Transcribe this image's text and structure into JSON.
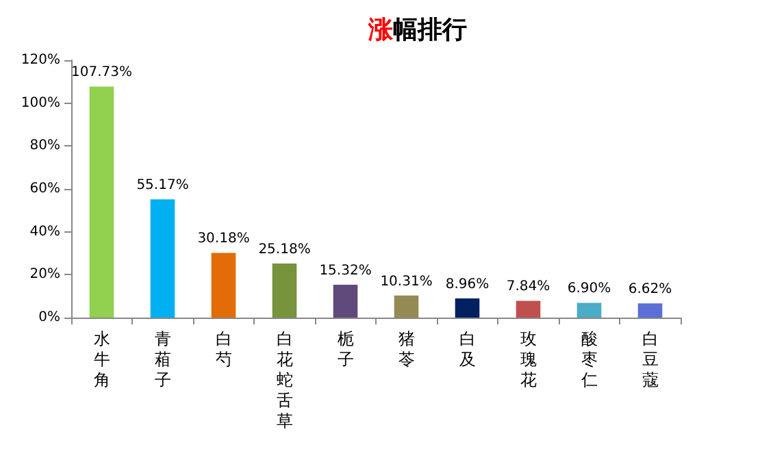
{
  "chart_data": {
    "type": "bar",
    "title": "涨幅排行",
    "categories": [
      "水牛角",
      "青葙子",
      "白芍",
      "白花蛇舌草",
      "栀子",
      "猪苓",
      "白及",
      "玫瑰花",
      "酸枣仁",
      "白豆蔻"
    ],
    "values": [
      107.73,
      55.17,
      30.18,
      25.18,
      15.32,
      10.31,
      8.96,
      7.84,
      6.9,
      6.62
    ],
    "value_labels": [
      "107.73%",
      "55.17%",
      "30.18%",
      "25.18%",
      "15.32%",
      "10.31%",
      "8.96%",
      "7.84%",
      "6.90%",
      "6.62%"
    ],
    "colors": [
      "#92d050",
      "#00b0f0",
      "#e36c09",
      "#77933c",
      "#604a7b",
      "#948a54",
      "#002060",
      "#c0504d",
      "#4bacc6",
      "#5b6fd6"
    ],
    "ylim": [
      0,
      120
    ],
    "yticks": [
      {
        "value": 0,
        "label": "0%"
      },
      {
        "value": 20,
        "label": "20%"
      },
      {
        "value": 40,
        "label": "40%"
      },
      {
        "value": 60,
        "label": "60%"
      },
      {
        "value": 80,
        "label": "80%"
      },
      {
        "value": 100,
        "label": "100%"
      },
      {
        "value": 120,
        "label": "120%"
      }
    ],
    "grid": false
  }
}
